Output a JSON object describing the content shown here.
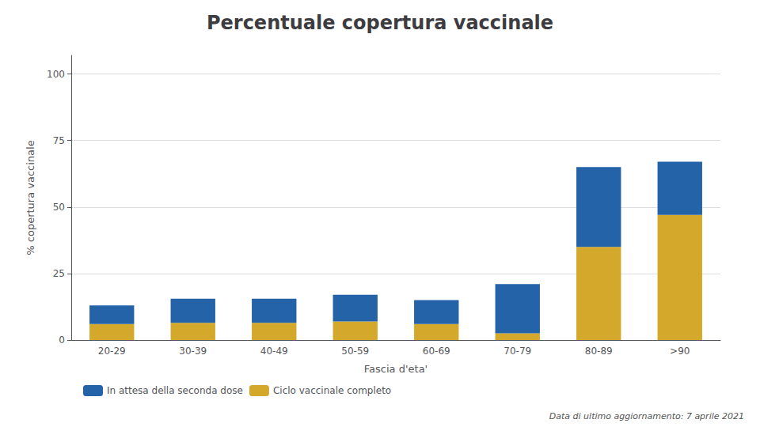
{
  "chart_data": {
    "type": "bar",
    "title": "Percentuale copertura vaccinale",
    "xlabel": "Fascia d'eta'",
    "ylabel": "% copertura vaccinale",
    "categories": [
      "20-29",
      "30-39",
      "40-49",
      "50-59",
      "60-69",
      "70-79",
      "80-89",
      ">90"
    ],
    "series": [
      {
        "name": "Ciclo vaccinale completo",
        "color": "#d4a82a",
        "values": [
          6.0,
          6.5,
          6.5,
          7.0,
          6.0,
          2.5,
          35.0,
          47.0
        ]
      },
      {
        "name": "In attesa della seconda dose",
        "color": "#2563a8",
        "values": [
          7.0,
          9.0,
          9.0,
          10.0,
          9.0,
          18.5,
          30.0,
          20.0
        ]
      }
    ],
    "stacked": true,
    "ylim": [
      0,
      107
    ],
    "yticks": [
      0,
      25,
      50,
      75,
      100
    ],
    "grid": true,
    "legend": "lower left",
    "annotations": [
      "Data di ultimo aggiornamento: 7 aprile 2021"
    ]
  }
}
